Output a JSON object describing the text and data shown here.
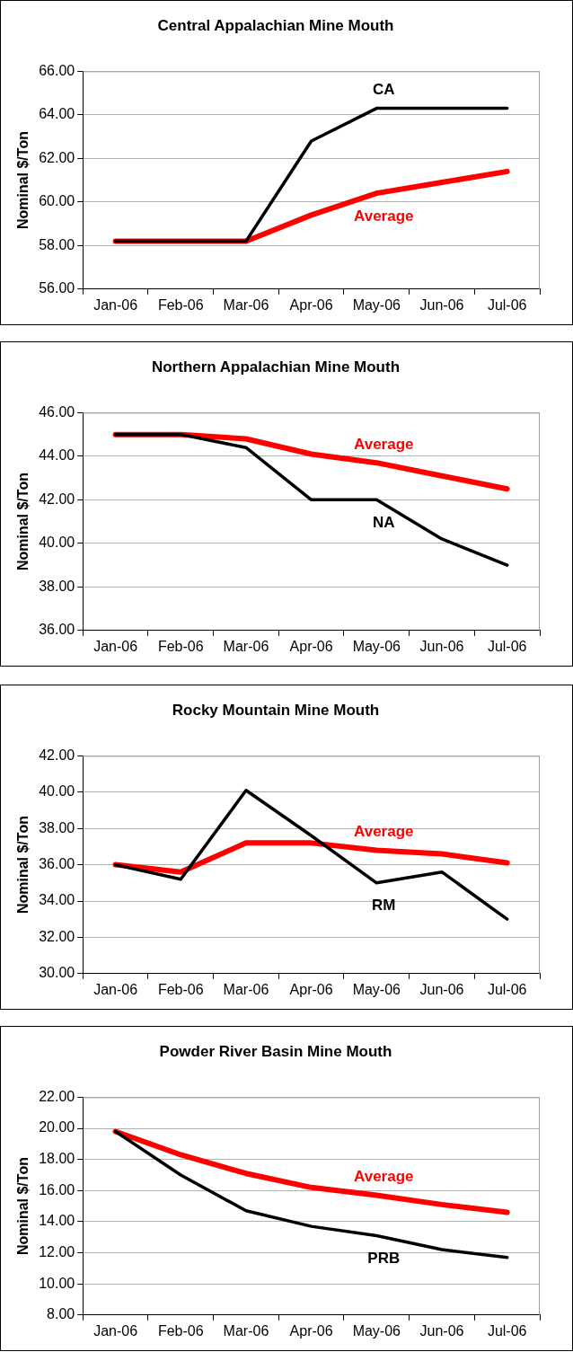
{
  "chart_data": [
    {
      "type": "line",
      "title": "Central Appalachian Mine Mouth",
      "ylabel": "Nominal $/Ton",
      "categories": [
        "Jan-06",
        "Feb-06",
        "Mar-06",
        "Apr-06",
        "May-06",
        "Jun-06",
        "Jul-06"
      ],
      "series": [
        {
          "name": "CA",
          "color": "#000000",
          "values": [
            58.2,
            58.2,
            58.2,
            62.8,
            64.3,
            64.3,
            64.3
          ]
        },
        {
          "name": "Average",
          "color": "#ff0000",
          "values": [
            58.2,
            58.2,
            58.2,
            59.4,
            60.4,
            60.9,
            61.4
          ]
        }
      ],
      "ylim": [
        56,
        66
      ],
      "yticks": [
        {
          "value": 56,
          "label": "56.00"
        },
        {
          "value": 58,
          "label": "58.00"
        },
        {
          "value": 60,
          "label": "60.00"
        },
        {
          "value": 62,
          "label": "62.00"
        },
        {
          "value": 64,
          "label": "64.00"
        },
        {
          "value": 66,
          "label": "66.00"
        }
      ],
      "grid": "y",
      "legend": false,
      "marker": "none",
      "line_style": "solid"
    },
    {
      "type": "line",
      "title": "Northern Appalachian Mine Mouth",
      "ylabel": "Nominal $/Ton",
      "categories": [
        "Jan-06",
        "Feb-06",
        "Mar-06",
        "Apr-06",
        "May-06",
        "Jun-06",
        "Jul-06"
      ],
      "series": [
        {
          "name": "NA",
          "color": "#000000",
          "values": [
            45.0,
            45.0,
            44.4,
            42.0,
            42.0,
            40.2,
            39.0
          ]
        },
        {
          "name": "Average",
          "color": "#ff0000",
          "values": [
            45.0,
            45.0,
            44.8,
            44.1,
            43.7,
            43.1,
            42.5
          ]
        }
      ],
      "ylim": [
        36,
        46
      ],
      "yticks": [
        {
          "value": 36,
          "label": "36.00"
        },
        {
          "value": 38,
          "label": "38.00"
        },
        {
          "value": 40,
          "label": "40.00"
        },
        {
          "value": 42,
          "label": "42.00"
        },
        {
          "value": 44,
          "label": "44.00"
        },
        {
          "value": 46,
          "label": "46.00"
        }
      ],
      "grid": "y",
      "legend": false,
      "marker": "none",
      "line_style": "solid"
    },
    {
      "type": "line",
      "title": "Rocky Mountain Mine Mouth",
      "ylabel": "Nominal $/Ton",
      "categories": [
        "Jan-06",
        "Feb-06",
        "Mar-06",
        "Apr-06",
        "May-06",
        "Jun-06",
        "Jul-06"
      ],
      "series": [
        {
          "name": "RM",
          "color": "#000000",
          "values": [
            36.0,
            35.2,
            40.1,
            37.6,
            35.0,
            35.6,
            33.0
          ]
        },
        {
          "name": "Average",
          "color": "#ff0000",
          "values": [
            36.0,
            35.6,
            37.2,
            37.2,
            36.8,
            36.6,
            36.1
          ]
        }
      ],
      "ylim": [
        30,
        42
      ],
      "yticks": [
        {
          "value": 30,
          "label": "30.00"
        },
        {
          "value": 32,
          "label": "32.00"
        },
        {
          "value": 34,
          "label": "34.00"
        },
        {
          "value": 36,
          "label": "36.00"
        },
        {
          "value": 38,
          "label": "38.00"
        },
        {
          "value": 40,
          "label": "40.00"
        },
        {
          "value": 42,
          "label": "42.00"
        }
      ],
      "grid": "y",
      "legend": false,
      "marker": "none",
      "line_style": "solid"
    },
    {
      "type": "line",
      "title": "Powder River Basin Mine Mouth",
      "ylabel": "Nominal $/Ton",
      "categories": [
        "Jan-06",
        "Feb-06",
        "Mar-06",
        "Apr-06",
        "May-06",
        "Jun-06",
        "Jul-06"
      ],
      "series": [
        {
          "name": "PRB",
          "color": "#000000",
          "values": [
            19.8,
            17.0,
            14.7,
            13.7,
            13.1,
            12.2,
            11.7
          ]
        },
        {
          "name": "Average",
          "color": "#ff0000",
          "values": [
            19.8,
            18.3,
            17.1,
            16.2,
            15.7,
            15.1,
            14.6
          ]
        }
      ],
      "ylim": [
        8,
        22
      ],
      "yticks": [
        {
          "value": 8,
          "label": "8.00"
        },
        {
          "value": 10,
          "label": "10.00"
        },
        {
          "value": 12,
          "label": "12.00"
        },
        {
          "value": 14,
          "label": "14.00"
        },
        {
          "value": 16,
          "label": "16.00"
        },
        {
          "value": 18,
          "label": "18.00"
        },
        {
          "value": 20,
          "label": "20.00"
        },
        {
          "value": 22,
          "label": "22.00"
        }
      ],
      "grid": "y",
      "legend": false,
      "marker": "none",
      "line_style": "solid"
    }
  ]
}
